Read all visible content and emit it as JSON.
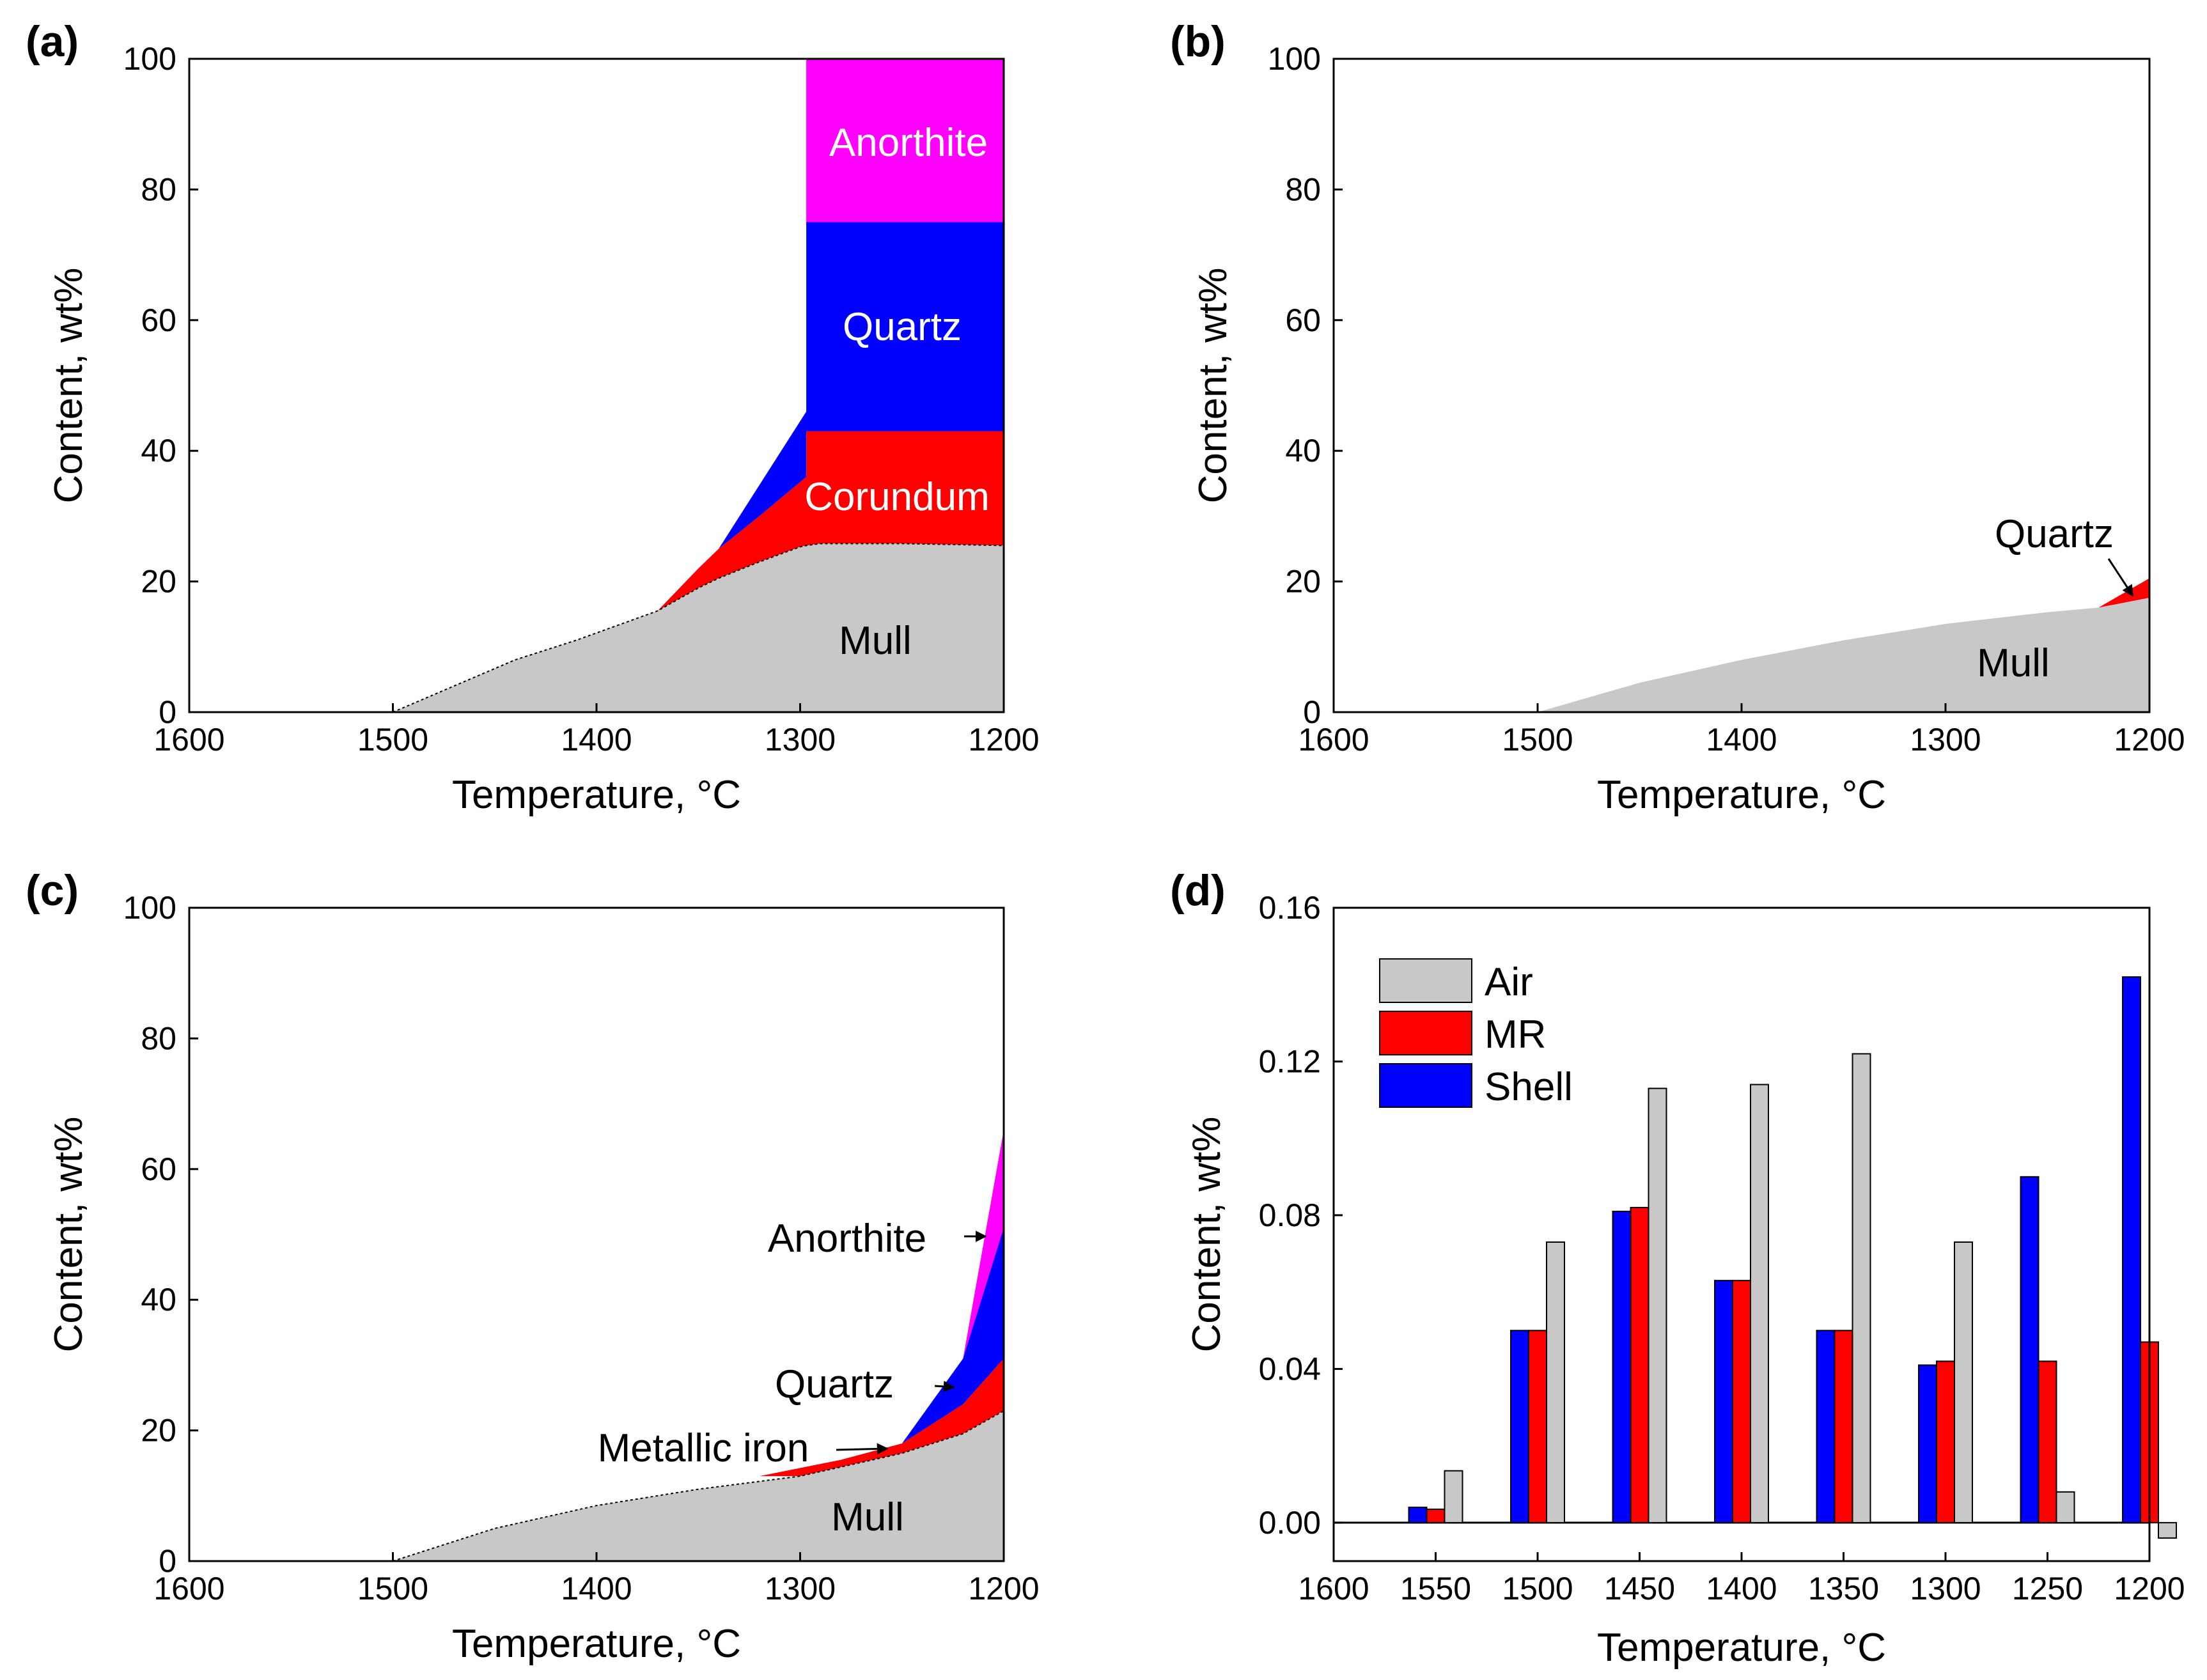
{
  "colors": {
    "mullite": "#c8c8c8",
    "corundum": "#ff0000",
    "quartz": "#0000ff",
    "anorthite": "#ff00ff",
    "air": "#c8c8c8",
    "mr": "#ff0000",
    "shell": "#0000ff"
  },
  "chart_data": [
    {
      "panel": "(a)",
      "type": "area",
      "xlabel": "Temperature, °C",
      "ylabel": "Content, wt%",
      "xlim": [
        1600,
        1200
      ],
      "ylim": [
        0,
        100
      ],
      "xticks": [
        "1600",
        "1500",
        "1400",
        "1300",
        "1200"
      ],
      "yticks": [
        "0",
        "20",
        "40",
        "60",
        "80",
        "100"
      ],
      "labels": {
        "mullite": "Mull",
        "corundum": "Corundum",
        "quartz": "Quartz",
        "anorthite": "Anorthite"
      },
      "series": [
        {
          "name": "Mull",
          "x": [
            1500,
            1470,
            1440,
            1410,
            1370,
            1350,
            1340,
            1320,
            1300,
            1297,
            1290,
            1250,
            1200
          ],
          "y": [
            0,
            4,
            8,
            11,
            15.5,
            19,
            20.5,
            23,
            25.3,
            25.5,
            25.8,
            25.8,
            25.5
          ]
        },
        {
          "name": "Corundum",
          "x": [
            1370,
            1350,
            1340,
            1320,
            1297,
            1297,
            1250,
            1200
          ],
          "y": [
            15.5,
            22,
            25,
            30,
            36,
            43,
            43,
            43
          ]
        },
        {
          "name": "Quartz",
          "x": [
            1340,
            1297,
            1297,
            1200
          ],
          "y": [
            25,
            46,
            75,
            75
          ]
        },
        {
          "name": "Anorthite",
          "x": [
            1297,
            1200
          ],
          "y": [
            100,
            100
          ]
        }
      ]
    },
    {
      "panel": "(b)",
      "type": "area",
      "xlabel": "Temperature, °C",
      "ylabel": "Content, wt%",
      "xlim": [
        1600,
        1200
      ],
      "ylim": [
        0,
        100
      ],
      "xticks": [
        "1600",
        "1500",
        "1400",
        "1300",
        "1200"
      ],
      "yticks": [
        "0",
        "20",
        "40",
        "60",
        "80",
        "100"
      ],
      "labels": {
        "mullite": "Mull",
        "quartz": "Quartz"
      },
      "series": [
        {
          "name": "Mull",
          "x": [
            1500,
            1450,
            1400,
            1350,
            1300,
            1250,
            1225,
            1200
          ],
          "y": [
            0,
            4.5,
            8,
            11,
            13.5,
            15.3,
            16,
            17.5
          ]
        },
        {
          "name": "Quartz",
          "x": [
            1225,
            1200
          ],
          "y": [
            16,
            20.5
          ]
        }
      ]
    },
    {
      "panel": "(c)",
      "type": "area",
      "xlabel": "Temperature, °C",
      "ylabel": "Content, wt%",
      "xlim": [
        1600,
        1200
      ],
      "ylim": [
        0,
        100
      ],
      "xticks": [
        "1600",
        "1500",
        "1400",
        "1300",
        "1200"
      ],
      "yticks": [
        "0",
        "20",
        "40",
        "60",
        "80",
        "100"
      ],
      "labels": {
        "mullite": "Mull",
        "metallic_iron": "Metallic iron",
        "quartz": "Quartz",
        "anorthite": "Anorthite"
      },
      "series": [
        {
          "name": "Mull",
          "x": [
            1500,
            1450,
            1400,
            1350,
            1300,
            1250,
            1220,
            1200
          ],
          "y": [
            0,
            5,
            8.5,
            11,
            13,
            16.5,
            19.5,
            23
          ]
        },
        {
          "name": "Metallic iron",
          "x": [
            1320,
            1280,
            1250,
            1220,
            1200
          ],
          "y": [
            13,
            15.5,
            18,
            24,
            31
          ]
        },
        {
          "name": "Quartz",
          "x": [
            1250,
            1220,
            1200
          ],
          "y": [
            18,
            31,
            51
          ]
        },
        {
          "name": "Anorthite",
          "x": [
            1220,
            1200
          ],
          "y": [
            31,
            66
          ]
        }
      ]
    },
    {
      "panel": "(d)",
      "type": "bar",
      "xlabel": "Temperature, °C",
      "ylabel": "Content, wt%",
      "xlim": [
        1600,
        1200
      ],
      "ylim": [
        -0.01,
        0.16
      ],
      "xticks": [
        "1600",
        "1550",
        "1500",
        "1450",
        "1400",
        "1350",
        "1300",
        "1250",
        "1200"
      ],
      "yticks": [
        "0.00",
        "0.04",
        "0.08",
        "0.12",
        "0.16"
      ],
      "categories": [
        "1550",
        "1500",
        "1450",
        "1400",
        "1350",
        "1300",
        "1250",
        "1200"
      ],
      "legend_position": "top-left",
      "series": [
        {
          "name": "Shell",
          "values": [
            0.004,
            0.05,
            0.081,
            0.063,
            0.05,
            0.041,
            0.09,
            0.142
          ]
        },
        {
          "name": "MR",
          "values": [
            0.0035,
            0.05,
            0.082,
            0.063,
            0.05,
            0.042,
            0.042,
            0.047
          ]
        },
        {
          "name": "Air",
          "values": [
            0.0135,
            0.073,
            0.113,
            0.114,
            0.122,
            0.073,
            0.008,
            -0.004
          ]
        }
      ]
    }
  ]
}
